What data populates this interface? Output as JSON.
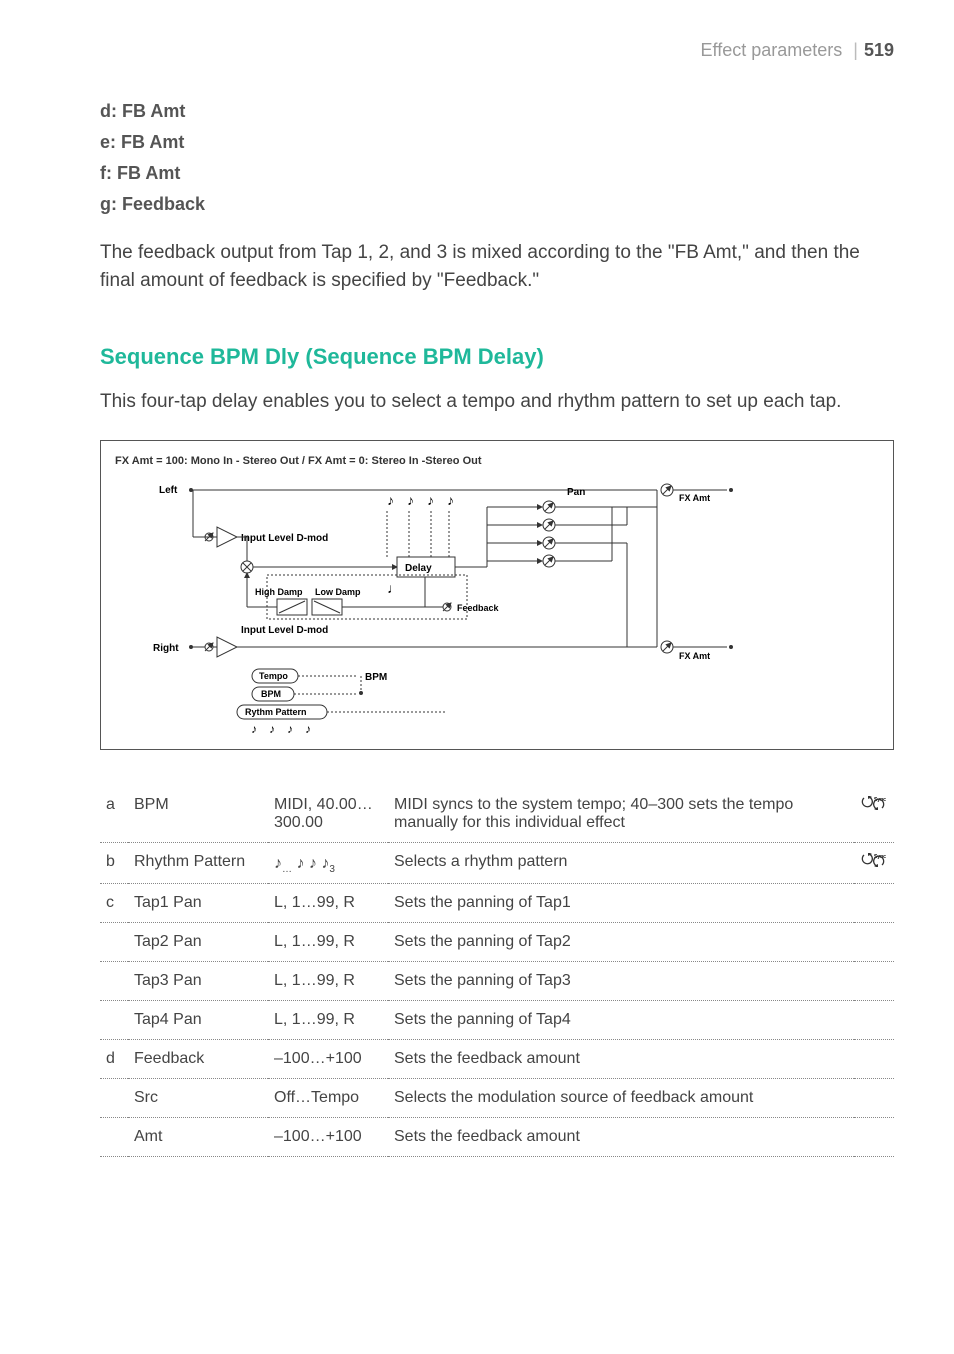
{
  "header": {
    "section": "Effect parameters",
    "divider": "|",
    "page": "519"
  },
  "paramList": [
    "d: FB Amt",
    "e: FB Amt",
    "f: FB Amt",
    "g: Feedback"
  ],
  "bodyText": "The feedback output from Tap 1, 2, and 3 is mixed according to the \"FB Amt,\" and then the final amount of feedback is specified by \"Feedback.\"",
  "sectionTitle": "Sequence BPM Dly (Sequence BPM Delay)",
  "intro": "This four-tap delay enables you to select a tempo and rhythm pattern to set up each tap.",
  "diagram": {
    "title": "FX Amt = 100: Mono In - Stereo Out  /  FX Amt = 0: Stereo In -Stereo Out",
    "labels": {
      "left": "Left",
      "right": "Right",
      "inputLevel": "Input Level D-mod",
      "highDamp": "High Damp",
      "lowDamp": "Low Damp",
      "delay": "Delay",
      "feedback": "Feedback",
      "pan": "Pan",
      "fxAmt": "FX Amt",
      "tempo": "Tempo",
      "bpm": "BPM",
      "rhythm": "Rythm Pattern"
    },
    "colors": {
      "border": "#555555",
      "wire": "#333333",
      "boxFill": "#ffffff",
      "bubble": "#ffffff",
      "text": "#333333"
    }
  },
  "table": {
    "rows": [
      {
        "letter": "a",
        "name": "BPM",
        "range": "MIDI, 40.00… 300.00",
        "desc": "MIDI syncs to the system tempo; 40–300 sets the tempo manually for this individual effect",
        "icon": "sync"
      },
      {
        "letter": "b",
        "name": "Rhythm Pattern",
        "range": "notes",
        "desc": "Selects a rhythm pattern",
        "icon": "sync"
      },
      {
        "letter": "c",
        "name": "Tap1 Pan",
        "range": "L, 1…99, R",
        "desc": "Sets the panning of Tap1",
        "icon": ""
      },
      {
        "letter": "",
        "name": "Tap2 Pan",
        "range": "L, 1…99, R",
        "desc": "Sets the panning of Tap2",
        "icon": ""
      },
      {
        "letter": "",
        "name": "Tap3 Pan",
        "range": "L, 1…99, R",
        "desc": "Sets the panning of Tap3",
        "icon": ""
      },
      {
        "letter": "",
        "name": "Tap4 Pan",
        "range": "L, 1…99, R",
        "desc": "Sets the panning of Tap4",
        "icon": ""
      },
      {
        "letter": "d",
        "name": "Feedback",
        "range": "–100…+100",
        "desc": "Sets the feedback amount",
        "icon": ""
      },
      {
        "letter": "",
        "name": "Src",
        "range": "Off…Tempo",
        "desc": "Selects the modulation source of feedback amount",
        "icon": ""
      },
      {
        "letter": "",
        "name": "Amt",
        "range": "–100…+100",
        "desc": "Sets the feedback amount",
        "icon": ""
      }
    ]
  }
}
